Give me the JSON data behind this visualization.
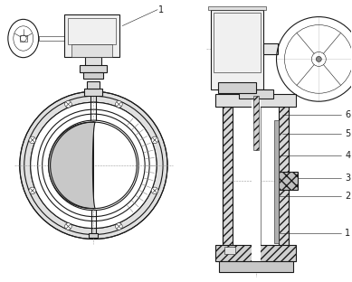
{
  "line_color": "#1a1a1a",
  "fig_width": 3.89,
  "fig_height": 3.12,
  "dpi": 100,
  "labels": [
    "1",
    "2",
    "3",
    "4",
    "5",
    "6"
  ],
  "gray_light": "#e8e8e8",
  "gray_mid": "#c8c8c8",
  "gray_dark": "#a0a0a0",
  "hatch_gray": "#909090"
}
